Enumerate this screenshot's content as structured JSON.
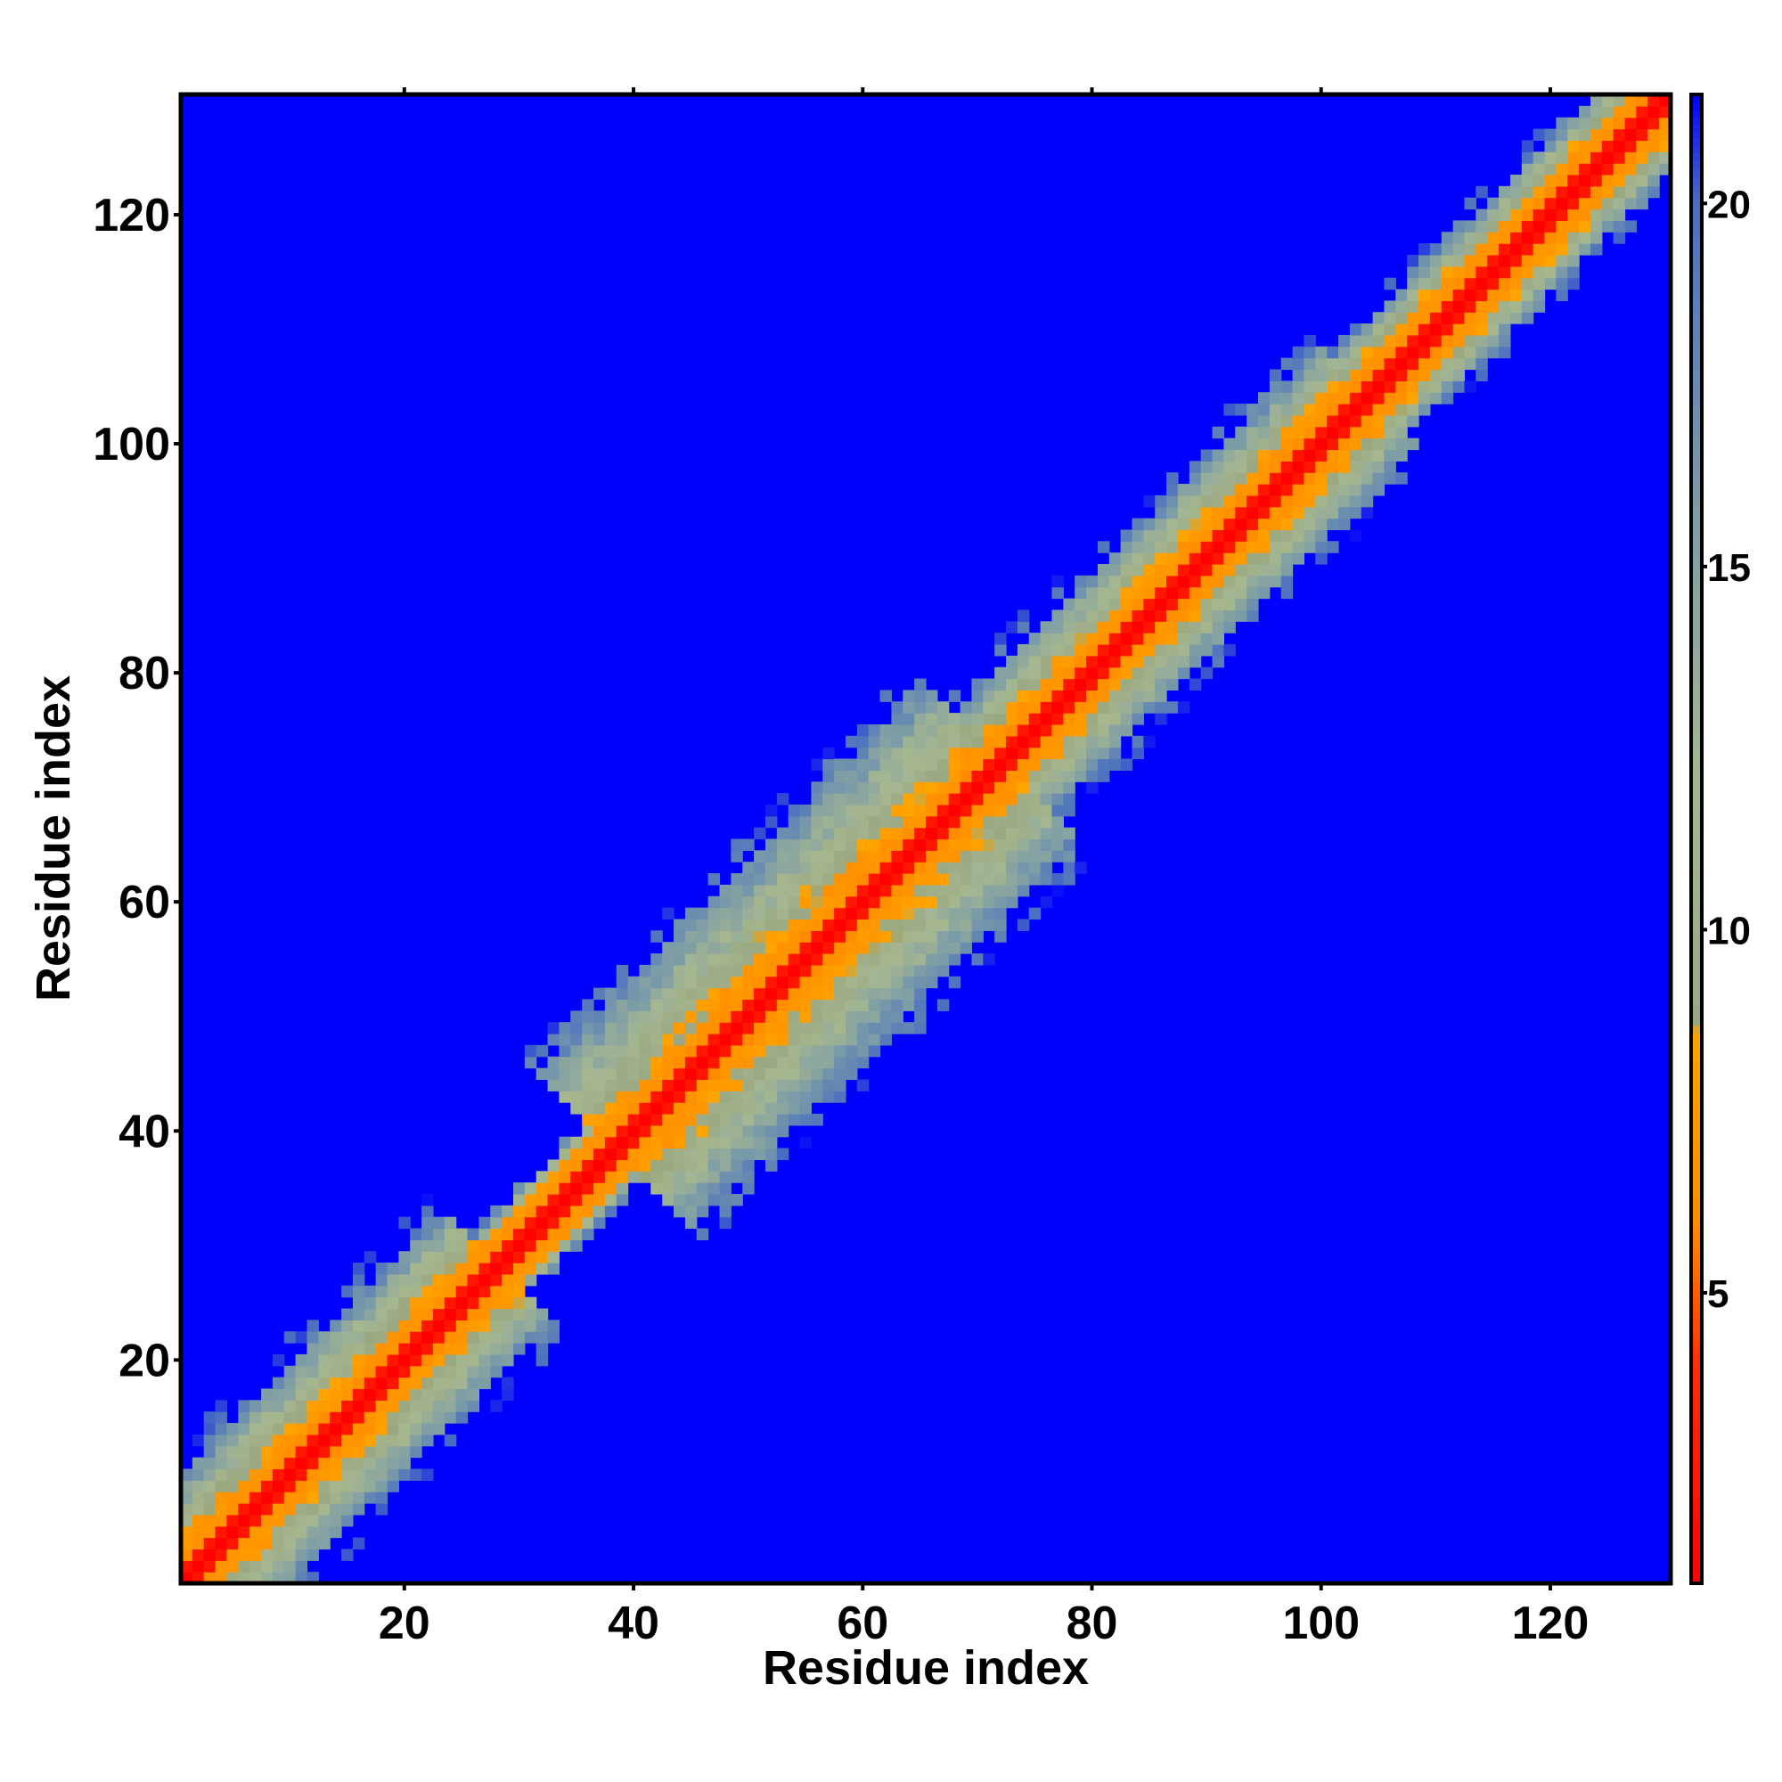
{
  "chart_data": {
    "type": "heatmap",
    "description_of_values": "distance map",
    "xlabel": "Residue index",
    "ylabel": "Residue index",
    "xlim": [
      1,
      130
    ],
    "ylim": [
      1,
      130
    ],
    "x_ticks": [
      20,
      40,
      60,
      80,
      100,
      120
    ],
    "y_ticks": [
      20,
      40,
      60,
      80,
      100,
      120
    ],
    "colorbar": {
      "range": [
        1,
        21.5
      ],
      "ticks": [
        5,
        10,
        15,
        20
      ],
      "stops": [
        {
          "value": 1,
          "color": "#ff0000"
        },
        {
          "value": 4,
          "color": "#ff3000"
        },
        {
          "value": 6,
          "color": "#ff8c00"
        },
        {
          "value": 8.6,
          "color": "#ffa500"
        },
        {
          "value": 8.7,
          "color": "#9aa882"
        },
        {
          "value": 12,
          "color": "#a6b790"
        },
        {
          "value": 16,
          "color": "#7a9ba8"
        },
        {
          "value": 20,
          "color": "#4a6fc0"
        },
        {
          "value": 21.5,
          "color": "#0000ff"
        }
      ]
    },
    "background_value": 21.5,
    "band": {
      "diagonal_value": 1,
      "segments": [
        {
          "from": 1,
          "to": 28,
          "halfwidth": 10
        },
        {
          "from": 28,
          "to": 38,
          "halfwidth": 5
        },
        {
          "from": 38,
          "to": 72,
          "halfwidth": 14
        },
        {
          "from": 72,
          "to": 104,
          "halfwidth": 9
        },
        {
          "from": 104,
          "to": 130,
          "halfwidth": 7
        }
      ]
    }
  }
}
